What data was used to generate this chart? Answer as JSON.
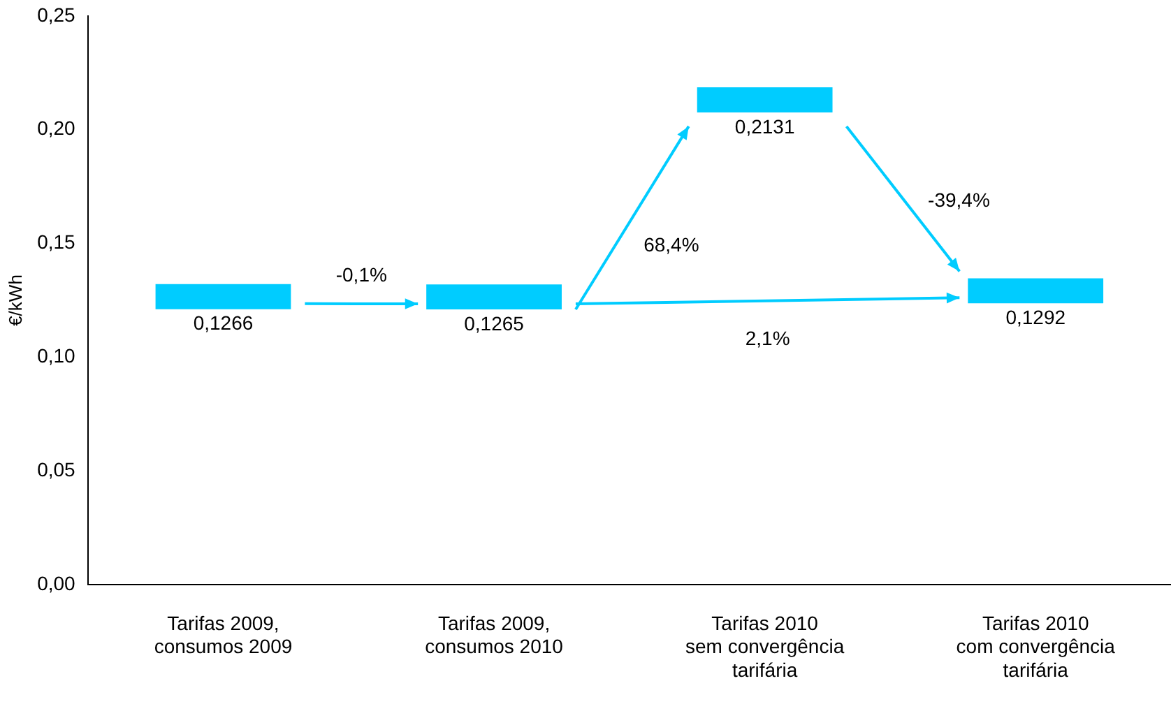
{
  "chart_data": {
    "type": "bar",
    "ylabel": "€/kWh",
    "categories": [
      "Tarifas 2009,\nconsumos 2009",
      "Tarifas 2009,\nconsumos 2010",
      "Tarifas 2010\nsem convergência\ntarifária",
      "Tarifas 2010\ncom convergência\ntarifária"
    ],
    "base": [
      0.1211,
      0.121,
      0.2076,
      0.1237
    ],
    "values": [
      0.011,
      0.011,
      0.011,
      0.011
    ],
    "color": "#00ccff",
    "ylim": [
      0,
      0.25
    ],
    "yticks": [
      {
        "value": 0,
        "label": "0,00"
      },
      {
        "value": 0.05,
        "label": "0,05"
      },
      {
        "value": 0.1,
        "label": "0,10"
      },
      {
        "value": 0.15,
        "label": "0,15"
      },
      {
        "value": 0.2,
        "label": "0,20"
      },
      {
        "value": 0.25,
        "label": "0,25"
      }
    ],
    "annotations": [
      "-0,1%",
      "68,4%",
      "-39,4%",
      "2,1%",
      "0,1266",
      "0,1265",
      "0,2131",
      "0,1292"
    ],
    "grid": false,
    "legend": false
  }
}
